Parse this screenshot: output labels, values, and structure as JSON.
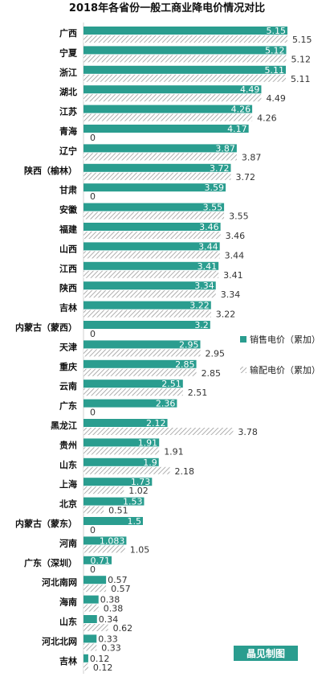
{
  "colors": {
    "sales": "#2a9d8f",
    "transmission_hatch": "#9a9a9a",
    "brand_bg": "#2a9d8f"
  },
  "chart_data": {
    "type": "bar",
    "orientation": "horizontal",
    "title": "2018年各省份一般工商业降电价情况对比",
    "categories": [
      "广西",
      "宁夏",
      "浙江",
      "湖北",
      "江苏",
      "青海",
      "辽宁",
      "陕西（榆林）",
      "甘肃",
      "安徽",
      "福建",
      "山西",
      "江西",
      "陕西",
      "吉林",
      "内蒙古（蒙西）",
      "天津",
      "重庆",
      "云南",
      "广东",
      "黑龙江",
      "贵州",
      "山东",
      "上海",
      "北京",
      "内蒙古（蒙东）",
      "河南",
      "广东（深圳）",
      "河北南网",
      "海南",
      "山东",
      "河北北网",
      "吉林"
    ],
    "series": [
      {
        "name": "销售电价（累加）",
        "style": "solid",
        "values": [
          5.15,
          5.12,
          5.11,
          4.49,
          4.26,
          4.17,
          3.87,
          3.72,
          3.59,
          3.55,
          3.46,
          3.44,
          3.41,
          3.34,
          3.22,
          3.2,
          2.95,
          2.85,
          2.51,
          2.36,
          2.12,
          1.91,
          1.9,
          1.73,
          1.53,
          1.5,
          1.083,
          0.71,
          0.57,
          0.38,
          0.34,
          0.33,
          0.12
        ]
      },
      {
        "name": "输配电价（累加）",
        "style": "hatched",
        "values": [
          5.15,
          5.12,
          5.11,
          4.49,
          4.26,
          0,
          3.87,
          3.72,
          0,
          3.55,
          3.46,
          3.44,
          3.41,
          3.34,
          3.22,
          0,
          2.95,
          2.85,
          2.51,
          0,
          3.78,
          1.91,
          2.18,
          1.02,
          0.51,
          0,
          1.05,
          0,
          0.57,
          0.38,
          0.62,
          0.33,
          0.12
        ]
      }
    ],
    "xlim": [
      0,
      5.6
    ],
    "legend_position": "right",
    "grid": false
  },
  "legend": {
    "sales_label": "销售电价（累加）",
    "transmission_label": "输配电价（累加）"
  },
  "brand": "晶见制图"
}
